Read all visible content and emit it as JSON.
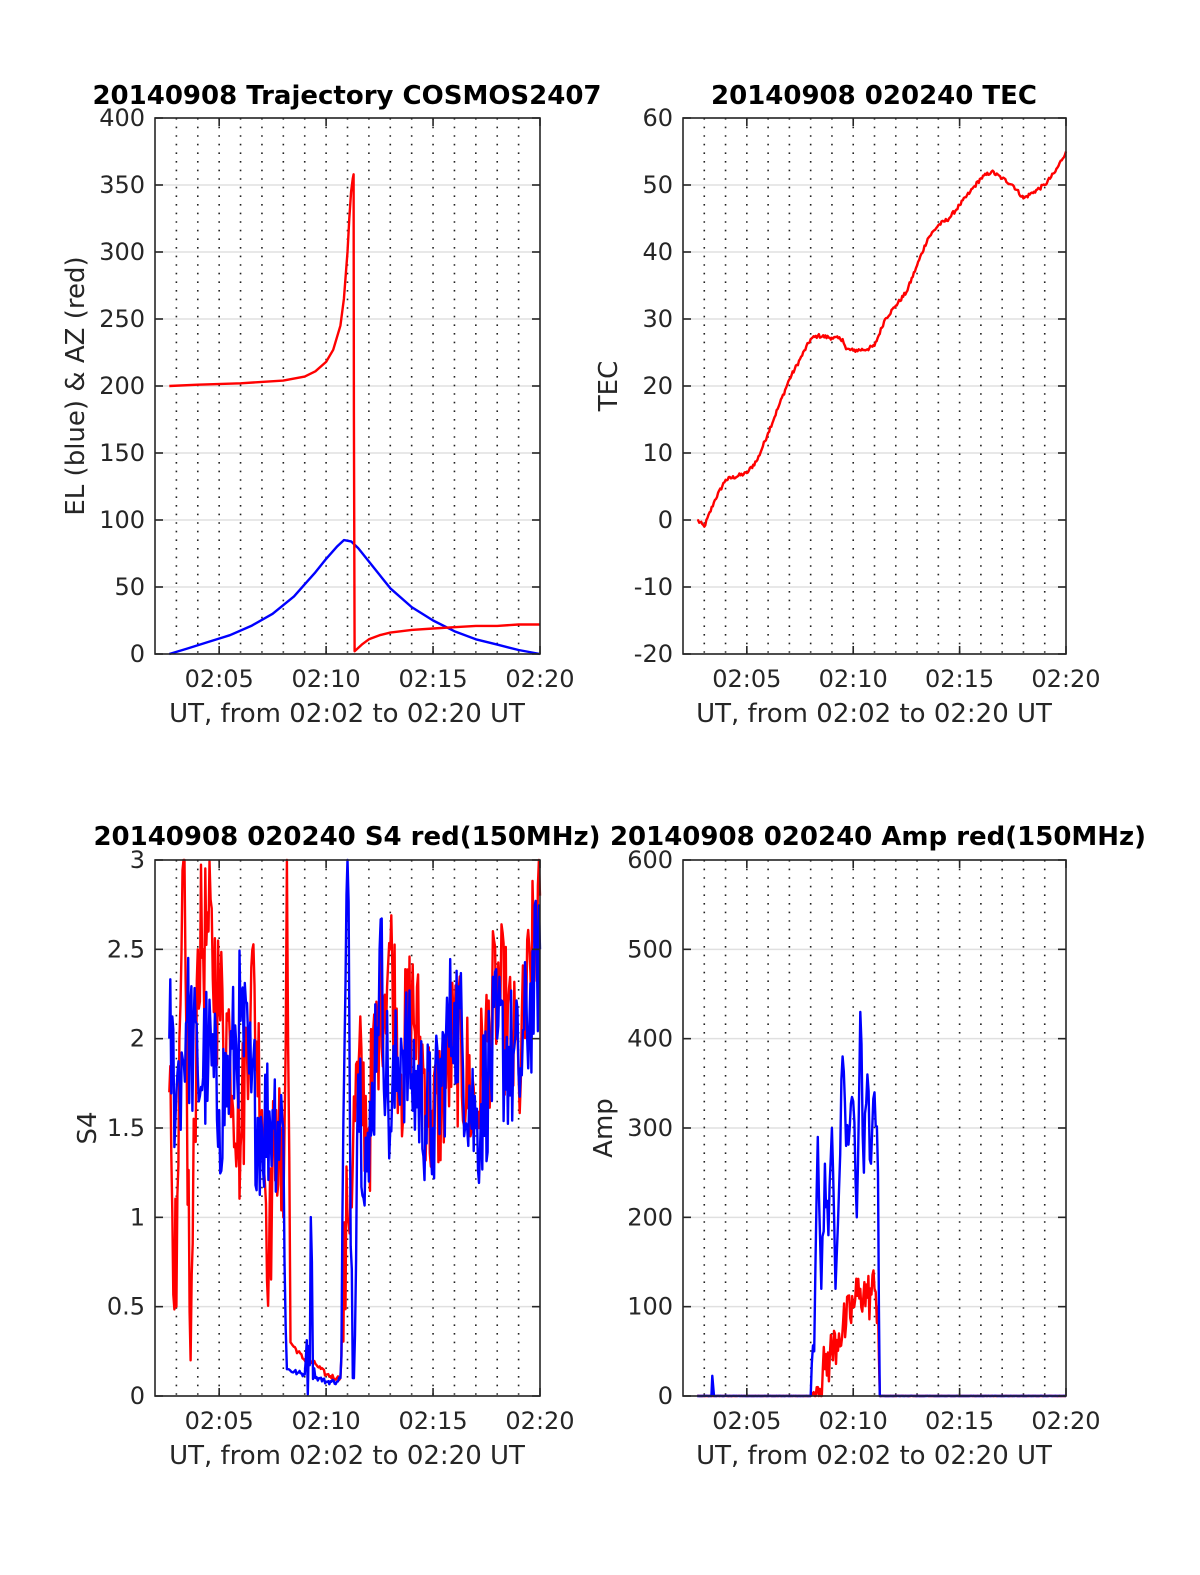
{
  "figure": {
    "background": "#ffffff"
  },
  "colors": {
    "red": "#ff0000",
    "blue": "#0000ff",
    "axis": "#262626",
    "grid": "#e0e0e0"
  },
  "chart_data": [
    {
      "type": "line",
      "title": "20140908 Trajectory COSMOS2407",
      "xlabel": "UT, from 02:02 to 02:20 UT",
      "ylabel": "EL (blue) & AZ (red)",
      "xlim": [
        "02:02",
        "02:20"
      ],
      "ylim": [
        0,
        400
      ],
      "xticks": [
        "02:05",
        "02:10",
        "02:15",
        "02:20"
      ],
      "yticks": [
        0,
        50,
        100,
        150,
        200,
        250,
        300,
        350,
        400
      ],
      "grid": true,
      "series": [
        {
          "color": "#0000ff",
          "x": [
            "02:02:40",
            "02:03:30",
            "02:04:30",
            "02:05:30",
            "02:06:30",
            "02:07:30",
            "02:08:30",
            "02:09:00",
            "02:09:30",
            "02:10:00",
            "02:10:30",
            "02:10:50",
            "02:11:10",
            "02:11:30",
            "02:12:00",
            "02:12:30",
            "02:13:00",
            "02:14:00",
            "02:15:00",
            "02:16:00",
            "02:17:00",
            "02:18:00",
            "02:19:00",
            "02:20:00"
          ],
          "y": [
            0,
            4,
            9,
            14,
            21,
            30,
            43,
            52,
            61,
            71,
            80,
            85,
            84,
            79,
            69,
            59,
            49,
            35,
            25,
            17,
            11,
            7,
            3,
            0
          ]
        },
        {
          "color": "#ff0000",
          "x": [
            "02:02:40",
            "02:04:00",
            "02:06:00",
            "02:08:00",
            "02:09:00",
            "02:09:30",
            "02:10:00",
            "02:10:20",
            "02:10:40",
            "02:10:50",
            "02:11:00",
            "02:11:05",
            "02:11:10",
            "02:11:15",
            "02:11:17",
            "02:11:18",
            "02:11:20",
            "02:11:40",
            "02:12:00",
            "02:12:30",
            "02:13:00",
            "02:14:00",
            "02:15:00",
            "02:16:00",
            "02:17:00",
            "02:18:00",
            "02:19:00",
            "02:20:00"
          ],
          "y": [
            200,
            201,
            202,
            204,
            207,
            211,
            218,
            227,
            245,
            265,
            300,
            325,
            345,
            355,
            358,
            180,
            2,
            7,
            11,
            14,
            16,
            18,
            19,
            20,
            21,
            21,
            22,
            22
          ]
        }
      ]
    },
    {
      "type": "line",
      "title": "20140908 020240 TEC",
      "xlabel": "UT, from 02:02 to 02:20 UT",
      "ylabel": "TEC",
      "xlim": [
        "02:02",
        "02:20"
      ],
      "ylim": [
        -20,
        60
      ],
      "xticks": [
        "02:05",
        "02:10",
        "02:15",
        "02:20"
      ],
      "yticks": [
        -20,
        -10,
        0,
        10,
        20,
        30,
        40,
        50,
        60
      ],
      "grid": true,
      "series": [
        {
          "color": "#ff0000",
          "x": [
            "02:02:40",
            "02:03:00",
            "02:03:30",
            "02:04:00",
            "02:05:00",
            "02:05:30",
            "02:06:00",
            "02:06:30",
            "02:07:00",
            "02:07:30",
            "02:08:00",
            "02:08:20",
            "02:09:00",
            "02:09:30",
            "02:09:40",
            "02:10:00",
            "02:10:40",
            "02:11:00",
            "02:11:30",
            "02:12:00",
            "02:12:30",
            "02:13:00",
            "02:13:30",
            "02:14:00",
            "02:14:30",
            "02:15:00",
            "02:15:30",
            "02:16:00",
            "02:16:30",
            "02:17:00",
            "02:17:30",
            "02:18:00",
            "02:18:30",
            "02:19:00",
            "02:19:30",
            "02:20:00"
          ],
          "y": [
            0,
            -1,
            3,
            6,
            7,
            9,
            13,
            17,
            21,
            24,
            27,
            27.5,
            27.2,
            27,
            25.5,
            25.3,
            25.5,
            26,
            30,
            32,
            34,
            38,
            42,
            44,
            45,
            47,
            49,
            51,
            52,
            51,
            50,
            48,
            49,
            50,
            52,
            55
          ]
        }
      ]
    },
    {
      "type": "line",
      "title": "20140908 020240 S4 red(150MHz)",
      "xlabel": "UT, from 02:02 to 02:20 UT",
      "ylabel": "S4",
      "xlim": [
        "02:02",
        "02:20"
      ],
      "ylim": [
        0,
        3
      ],
      "xticks": [
        "02:05",
        "02:10",
        "02:15",
        "02:20"
      ],
      "yticks": [
        0,
        0.5,
        1,
        1.5,
        2,
        2.5,
        3
      ],
      "grid": true,
      "series": [
        {
          "color": "#ff0000",
          "x": [
            "02:02:40",
            "02:03:00",
            "02:03:20",
            "02:03:40",
            "02:04:00",
            "02:04:30",
            "02:05:00",
            "02:05:30",
            "02:06:00",
            "02:06:30",
            "02:07:00",
            "02:07:20",
            "02:07:40",
            "02:08:00",
            "02:08:10",
            "02:08:20",
            "02:09:00",
            "02:09:30",
            "02:10:00",
            "02:10:30",
            "02:10:40",
            "02:11:00",
            "02:11:30",
            "02:12:00",
            "02:12:30",
            "02:13:00",
            "02:13:30",
            "02:14:00",
            "02:15:00",
            "02:16:00",
            "02:17:00",
            "02:18:00",
            "02:19:00",
            "02:20:00"
          ],
          "y": [
            1.7,
            0.5,
            3,
            0.2,
            2.5,
            2.6,
            2.2,
            2,
            1.4,
            2.4,
            1.6,
            0.8,
            1.6,
            1.0,
            3.0,
            0.3,
            0.2,
            0.18,
            0.12,
            0.1,
            0.1,
            1.0,
            1.8,
            1.5,
            2.2,
            2.5,
            1.8,
            2.2,
            1.5,
            2.0,
            1.6,
            2.3,
            1.8,
            2.8
          ]
        },
        {
          "color": "#0000ff",
          "x": [
            "02:02:40",
            "02:03:00",
            "02:03:30",
            "02:04:00",
            "02:04:30",
            "02:05:00",
            "02:05:30",
            "02:06:00",
            "02:06:30",
            "02:07:00",
            "02:07:30",
            "02:08:00",
            "02:08:10",
            "02:08:40",
            "02:09:00",
            "02:09:20",
            "02:09:30",
            "02:09:40",
            "02:10:00",
            "02:10:30",
            "02:10:40",
            "02:11:00",
            "02:11:15",
            "02:11:30",
            "02:12:00",
            "02:12:30",
            "02:13:00",
            "02:13:30",
            "02:14:00",
            "02:15:00",
            "02:16:00",
            "02:17:00",
            "02:18:00",
            "02:19:00",
            "02:20:00"
          ],
          "y": [
            2.0,
            1.7,
            2.1,
            1.8,
            1.9,
            1.6,
            1.8,
            2.1,
            1.7,
            1.5,
            1.6,
            1.5,
            0.15,
            0.13,
            0.12,
            0.75,
            0.1,
            0.1,
            0.08,
            0.08,
            0.1,
            3.0,
            0.1,
            1.8,
            1.2,
            2.5,
            1.5,
            2.0,
            1.8,
            1.5,
            2.2,
            1.5,
            2.0,
            1.8,
            2.5
          ]
        }
      ]
    },
    {
      "type": "line",
      "title": "20140908 020240 Amp red(150MHz)",
      "xlabel": "UT, from 02:02 to 02:20 UT",
      "ylabel": "Amp",
      "xlim": [
        "02:02",
        "02:20"
      ],
      "ylim": [
        0,
        600
      ],
      "xticks": [
        "02:05",
        "02:10",
        "02:15",
        "02:20"
      ],
      "yticks": [
        0,
        100,
        200,
        300,
        400,
        500,
        600
      ],
      "grid": true,
      "series": [
        {
          "color": "#ff0000",
          "x": [
            "02:02:40",
            "02:08:00",
            "02:08:20",
            "02:08:40",
            "02:09:00",
            "02:09:20",
            "02:09:40",
            "02:10:00",
            "02:10:20",
            "02:10:40",
            "02:11:00",
            "02:11:10",
            "02:11:15",
            "02:20:00"
          ],
          "y": [
            0,
            0,
            10,
            30,
            50,
            70,
            80,
            100,
            120,
            110,
            120,
            100,
            0,
            0
          ]
        },
        {
          "color": "#0000ff",
          "x": [
            "02:02:40",
            "02:03:20",
            "02:03:25",
            "02:03:30",
            "02:08:00",
            "02:08:10",
            "02:08:20",
            "02:08:30",
            "02:08:40",
            "02:08:50",
            "02:09:00",
            "02:09:10",
            "02:09:20",
            "02:09:30",
            "02:09:40",
            "02:09:50",
            "02:10:00",
            "02:10:10",
            "02:10:20",
            "02:10:30",
            "02:10:40",
            "02:10:50",
            "02:11:00",
            "02:11:10",
            "02:11:15",
            "02:20:00"
          ],
          "y": [
            0,
            0,
            12,
            0,
            0,
            50,
            290,
            120,
            260,
            180,
            300,
            120,
            230,
            380,
            280,
            300,
            330,
            200,
            430,
            250,
            360,
            260,
            340,
            250,
            0,
            0
          ]
        }
      ]
    }
  ]
}
